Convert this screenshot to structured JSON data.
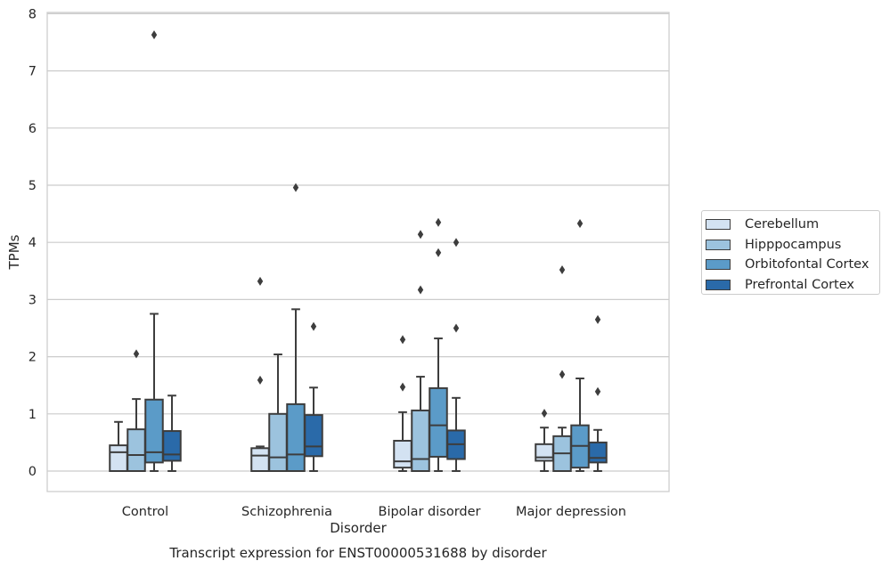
{
  "chart_data": {
    "type": "box",
    "title": "Transcript expression for ENST00000531688 by disorder",
    "xlabel": "Disorder",
    "ylabel": "TPMs",
    "ylim": [
      -0.35,
      8.05
    ],
    "yticks": [
      0,
      1,
      2,
      3,
      4,
      5,
      6,
      7,
      8
    ],
    "grid": "horizontal",
    "legend_position": "right",
    "categories": [
      "Control",
      "Schizophrenia",
      "Bipolar disorder",
      "Major depression"
    ],
    "series": [
      {
        "name": "Cerebellum",
        "color": "#d3e2f2",
        "boxes": [
          {
            "whislo": 0.0,
            "q1": 0.0,
            "med": 0.33,
            "q3": 0.45,
            "whishi": 0.86,
            "fliers": []
          },
          {
            "whislo": 0.0,
            "q1": 0.0,
            "med": 0.27,
            "q3": 0.4,
            "whishi": 0.43,
            "fliers": [
              1.59,
              3.32
            ]
          },
          {
            "whislo": 0.0,
            "q1": 0.06,
            "med": 0.17,
            "q3": 0.53,
            "whishi": 1.03,
            "fliers": [
              1.47,
              2.3
            ]
          },
          {
            "whislo": 0.0,
            "q1": 0.18,
            "med": 0.24,
            "q3": 0.47,
            "whishi": 0.76,
            "fliers": [
              1.01
            ]
          }
        ]
      },
      {
        "name": "Hipppocampus",
        "color": "#9cc3de",
        "boxes": [
          {
            "whislo": 0.0,
            "q1": 0.0,
            "med": 0.28,
            "q3": 0.73,
            "whishi": 1.26,
            "fliers": [
              2.05
            ]
          },
          {
            "whislo": 0.0,
            "q1": 0.0,
            "med": 0.24,
            "q3": 1.0,
            "whishi": 2.04,
            "fliers": []
          },
          {
            "whislo": 0.0,
            "q1": 0.0,
            "med": 0.21,
            "q3": 1.06,
            "whishi": 1.65,
            "fliers": [
              3.17,
              4.14
            ]
          },
          {
            "whislo": 0.0,
            "q1": 0.0,
            "med": 0.31,
            "q3": 0.61,
            "whishi": 0.76,
            "fliers": [
              1.69,
              3.52
            ]
          }
        ]
      },
      {
        "name": "Orbitofontal Cortex",
        "color": "#5b9bc8",
        "boxes": [
          {
            "whislo": 0.0,
            "q1": 0.15,
            "med": 0.33,
            "q3": 1.25,
            "whishi": 2.75,
            "fliers": [
              7.63
            ]
          },
          {
            "whislo": 0.0,
            "q1": 0.0,
            "med": 0.29,
            "q3": 1.17,
            "whishi": 2.83,
            "fliers": [
              4.96
            ]
          },
          {
            "whislo": 0.0,
            "q1": 0.25,
            "med": 0.8,
            "q3": 1.45,
            "whishi": 2.32,
            "fliers": [
              3.82,
              4.35
            ]
          },
          {
            "whislo": 0.0,
            "q1": 0.06,
            "med": 0.44,
            "q3": 0.8,
            "whishi": 1.62,
            "fliers": [
              4.33
            ]
          }
        ]
      },
      {
        "name": "Prefrontal Cortex",
        "color": "#2a6aa9",
        "boxes": [
          {
            "whislo": 0.0,
            "q1": 0.18,
            "med": 0.29,
            "q3": 0.7,
            "whishi": 1.32,
            "fliers": []
          },
          {
            "whislo": 0.0,
            "q1": 0.26,
            "med": 0.43,
            "q3": 0.98,
            "whishi": 1.46,
            "fliers": [
              2.53
            ]
          },
          {
            "whislo": 0.0,
            "q1": 0.21,
            "med": 0.47,
            "q3": 0.71,
            "whishi": 1.28,
            "fliers": [
              2.5,
              4.0
            ]
          },
          {
            "whislo": 0.0,
            "q1": 0.15,
            "med": 0.23,
            "q3": 0.5,
            "whishi": 0.72,
            "fliers": [
              1.39,
              2.65
            ]
          }
        ]
      }
    ]
  }
}
